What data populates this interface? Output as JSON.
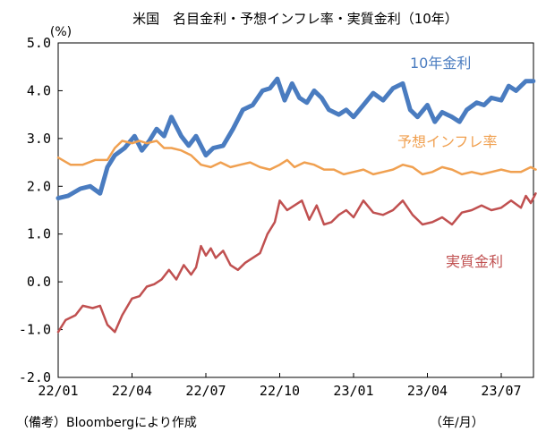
{
  "chart_data": {
    "type": "line",
    "title": "米国　名目金利・予想インフレ率・実質金利（10年）",
    "ylabel": "(%)",
    "xunit": "（年/月）",
    "note": "（備考）Bloombergにより作成",
    "ylim": [
      -2.0,
      5.0
    ],
    "yticks": [
      "5.0",
      "4.0",
      "3.0",
      "2.0",
      "1.0",
      "0.0",
      "-1.0",
      "-2.0"
    ],
    "ytick_values": [
      5,
      4,
      3,
      2,
      1,
      0,
      -1,
      -2
    ],
    "xlim": [
      0,
      20
    ],
    "xticks": [
      "22/01",
      "22/04",
      "22/07",
      "22/10",
      "23/01",
      "23/04",
      "23/07"
    ],
    "xtick_values": [
      0,
      3,
      6,
      9,
      12,
      15,
      18
    ],
    "grid": false,
    "series": [
      {
        "name": "10年金利",
        "color": "#4a7cc0",
        "x": [
          0,
          0.4,
          0.9,
          1.3,
          1.7,
          2.0,
          2.3,
          2.7,
          3.1,
          3.4,
          3.7,
          4.0,
          4.3,
          4.6,
          5.0,
          5.3,
          5.6,
          6.0,
          6.3,
          6.7,
          7.1,
          7.5,
          7.9,
          8.3,
          8.6,
          8.9,
          9.2,
          9.5,
          9.8,
          10.1,
          10.4,
          10.7,
          11.0,
          11.4,
          11.7,
          12.0,
          12.4,
          12.8,
          13.2,
          13.6,
          14.0,
          14.3,
          14.6,
          15.0,
          15.3,
          15.6,
          16.0,
          16.3,
          16.6,
          17.0,
          17.3,
          17.6,
          18.0,
          18.3,
          18.6,
          19.0,
          19.3
        ],
        "values": [
          1.75,
          1.8,
          1.95,
          2.0,
          1.85,
          2.4,
          2.65,
          2.8,
          3.05,
          2.75,
          2.95,
          3.2,
          3.05,
          3.45,
          3.05,
          2.85,
          3.05,
          2.65,
          2.8,
          2.85,
          3.2,
          3.6,
          3.7,
          4.0,
          4.05,
          4.25,
          3.8,
          4.15,
          3.85,
          3.75,
          4.0,
          3.85,
          3.6,
          3.5,
          3.6,
          3.45,
          3.7,
          3.95,
          3.8,
          4.05,
          4.15,
          3.6,
          3.45,
          3.7,
          3.35,
          3.55,
          3.45,
          3.35,
          3.6,
          3.75,
          3.7,
          3.85,
          3.8,
          4.1,
          4.0,
          4.2,
          4.2
        ]
      },
      {
        "name": "予想インフレ率",
        "color": "#f0a050",
        "x": [
          0,
          0.5,
          1.0,
          1.5,
          2.0,
          2.3,
          2.6,
          3.0,
          3.3,
          3.6,
          4.0,
          4.3,
          4.6,
          5.0,
          5.4,
          5.8,
          6.2,
          6.6,
          7.0,
          7.4,
          7.8,
          8.2,
          8.6,
          9.0,
          9.3,
          9.6,
          10.0,
          10.4,
          10.8,
          11.2,
          11.6,
          12.0,
          12.4,
          12.8,
          13.2,
          13.6,
          14.0,
          14.4,
          14.8,
          15.2,
          15.6,
          16.0,
          16.4,
          16.8,
          17.2,
          17.6,
          18.0,
          18.4,
          18.8,
          19.2,
          19.4
        ],
        "values": [
          2.6,
          2.45,
          2.45,
          2.55,
          2.55,
          2.8,
          2.95,
          2.9,
          2.95,
          2.9,
          2.95,
          2.8,
          2.8,
          2.75,
          2.65,
          2.45,
          2.4,
          2.5,
          2.4,
          2.45,
          2.5,
          2.4,
          2.35,
          2.45,
          2.55,
          2.4,
          2.5,
          2.45,
          2.35,
          2.35,
          2.25,
          2.3,
          2.35,
          2.25,
          2.3,
          2.35,
          2.45,
          2.4,
          2.25,
          2.3,
          2.4,
          2.35,
          2.25,
          2.3,
          2.25,
          2.3,
          2.35,
          2.3,
          2.3,
          2.4,
          2.35
        ]
      },
      {
        "name": "実質金利",
        "color": "#c05050",
        "x": [
          0,
          0.3,
          0.7,
          1.0,
          1.4,
          1.7,
          2.0,
          2.3,
          2.6,
          3.0,
          3.3,
          3.6,
          3.9,
          4.2,
          4.5,
          4.8,
          5.1,
          5.4,
          5.6,
          5.8,
          6.0,
          6.2,
          6.4,
          6.7,
          7.0,
          7.3,
          7.6,
          7.9,
          8.2,
          8.5,
          8.8,
          9.0,
          9.3,
          9.6,
          9.9,
          10.2,
          10.5,
          10.8,
          11.1,
          11.4,
          11.7,
          12.0,
          12.4,
          12.8,
          13.2,
          13.6,
          14.0,
          14.4,
          14.8,
          15.2,
          15.6,
          16.0,
          16.4,
          16.8,
          17.2,
          17.6,
          18.0,
          18.4,
          18.8,
          19.0,
          19.2,
          19.4
        ],
        "values": [
          -1.05,
          -0.8,
          -0.7,
          -0.5,
          -0.55,
          -0.5,
          -0.9,
          -1.05,
          -0.7,
          -0.35,
          -0.3,
          -0.1,
          -0.05,
          0.05,
          0.25,
          0.05,
          0.35,
          0.15,
          0.3,
          0.75,
          0.55,
          0.7,
          0.5,
          0.65,
          0.35,
          0.25,
          0.4,
          0.5,
          0.6,
          1.0,
          1.25,
          1.7,
          1.5,
          1.6,
          1.7,
          1.3,
          1.6,
          1.2,
          1.25,
          1.4,
          1.5,
          1.35,
          1.7,
          1.45,
          1.4,
          1.5,
          1.7,
          1.4,
          1.2,
          1.25,
          1.35,
          1.2,
          1.45,
          1.5,
          1.6,
          1.5,
          1.55,
          1.7,
          1.55,
          1.8,
          1.65,
          1.85
        ]
      }
    ]
  }
}
